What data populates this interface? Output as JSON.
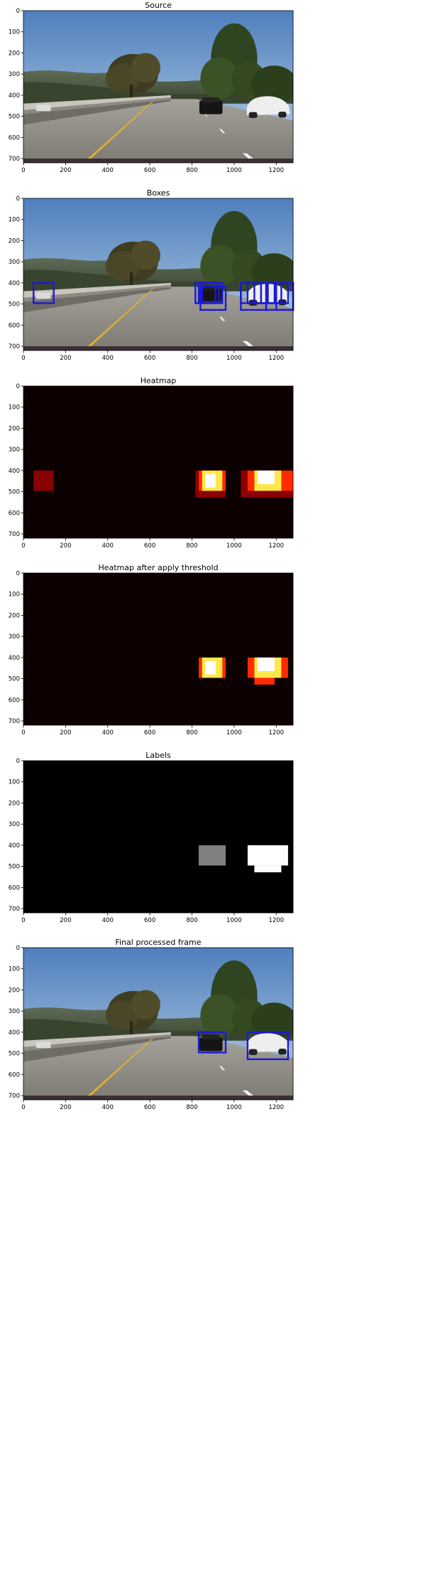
{
  "figure": {
    "panels": [
      {
        "id": "source",
        "title": "Source",
        "kind": "road"
      },
      {
        "id": "boxes",
        "title": "Boxes",
        "kind": "road"
      },
      {
        "id": "heatmap",
        "title": "Heatmap",
        "kind": "heat"
      },
      {
        "id": "threshold",
        "title": "Heatmap after apply threshold",
        "kind": "heat"
      },
      {
        "id": "labels",
        "title": "Labels",
        "kind": "labels"
      },
      {
        "id": "final",
        "title": "Final processed frame",
        "kind": "road"
      }
    ]
  },
  "colors": {
    "box": "#1a1ad6",
    "heat_bg": "#0d0000",
    "heat_low": "#8b0000",
    "heat_mid": "#ff2a00",
    "heat_high": "#ffe84a",
    "heat_peak": "#ffffff",
    "label_bg": "#000000",
    "label_1": "#808080",
    "label_2": "#ffffff"
  },
  "chart_data": [
    {
      "type": "heatmap",
      "title": "Source",
      "xlim": [
        0,
        1280
      ],
      "ylim": [
        720,
        0
      ],
      "xticks": [
        0,
        200,
        400,
        600,
        800,
        1000,
        1200
      ],
      "yticks": [
        0,
        100,
        200,
        300,
        400,
        500,
        600,
        700
      ],
      "content": "road scene image",
      "boxes": []
    },
    {
      "type": "heatmap",
      "title": "Boxes",
      "xlim": [
        0,
        1280
      ],
      "ylim": [
        720,
        0
      ],
      "xticks": [
        0,
        200,
        400,
        600,
        800,
        1000,
        1200
      ],
      "yticks": [
        0,
        100,
        200,
        300,
        400,
        500,
        600,
        700
      ],
      "content": "road scene image",
      "boxes": [
        [
          48,
          400,
          144,
          496
        ],
        [
          816,
          400,
          912,
          496
        ],
        [
          832,
          400,
          928,
          496
        ],
        [
          848,
          400,
          944,
          496
        ],
        [
          840,
          416,
          960,
          528
        ],
        [
          1032,
          400,
          1128,
          496
        ],
        [
          1064,
          400,
          1160,
          496
        ],
        [
          1096,
          400,
          1192,
          496
        ],
        [
          1128,
          400,
          1224,
          496
        ],
        [
          1160,
          400,
          1256,
          496
        ],
        [
          1032,
          400,
          1152,
          528
        ],
        [
          1152,
          400,
          1280,
          528
        ],
        [
          1200,
          400,
          1280,
          528
        ]
      ]
    },
    {
      "type": "heatmap",
      "title": "Heatmap",
      "xlim": [
        0,
        1280
      ],
      "ylim": [
        720,
        0
      ],
      "xticks": [
        0,
        200,
        400,
        600,
        800,
        1000,
        1200
      ],
      "yticks": [
        0,
        100,
        200,
        300,
        400,
        500,
        600,
        700
      ],
      "cells": [
        {
          "x": [
            48,
            144
          ],
          "y": [
            400,
            496
          ],
          "v": 1
        },
        {
          "x": [
            816,
            960
          ],
          "y": [
            400,
            528
          ],
          "v": 1
        },
        {
          "x": [
            832,
            960
          ],
          "y": [
            400,
            496
          ],
          "v": 2
        },
        {
          "x": [
            848,
            944
          ],
          "y": [
            400,
            496
          ],
          "v": 3
        },
        {
          "x": [
            864,
            912
          ],
          "y": [
            416,
            480
          ],
          "v": 4
        },
        {
          "x": [
            1032,
            1280
          ],
          "y": [
            400,
            528
          ],
          "v": 1
        },
        {
          "x": [
            1064,
            1280
          ],
          "y": [
            400,
            496
          ],
          "v": 2
        },
        {
          "x": [
            1096,
            1224
          ],
          "y": [
            400,
            496
          ],
          "v": 3
        },
        {
          "x": [
            1112,
            1192
          ],
          "y": [
            400,
            464
          ],
          "v": 4
        }
      ]
    },
    {
      "type": "heatmap",
      "title": "Heatmap after apply threshold",
      "xlim": [
        0,
        1280
      ],
      "ylim": [
        720,
        0
      ],
      "xticks": [
        0,
        200,
        400,
        600,
        800,
        1000,
        1200
      ],
      "yticks": [
        0,
        100,
        200,
        300,
        400,
        500,
        600,
        700
      ],
      "cells": [
        {
          "x": [
            832,
            960
          ],
          "y": [
            400,
            496
          ],
          "v": 2
        },
        {
          "x": [
            848,
            944
          ],
          "y": [
            400,
            496
          ],
          "v": 3
        },
        {
          "x": [
            864,
            912
          ],
          "y": [
            416,
            480
          ],
          "v": 4
        },
        {
          "x": [
            1064,
            1256
          ],
          "y": [
            400,
            496
          ],
          "v": 2
        },
        {
          "x": [
            1096,
            1224
          ],
          "y": [
            400,
            496
          ],
          "v": 3
        },
        {
          "x": [
            1112,
            1192
          ],
          "y": [
            400,
            464
          ],
          "v": 4
        },
        {
          "x": [
            1096,
            1192
          ],
          "y": [
            496,
            528
          ],
          "v": 2
        }
      ]
    },
    {
      "type": "heatmap",
      "title": "Labels",
      "xlim": [
        0,
        1280
      ],
      "ylim": [
        720,
        0
      ],
      "xticks": [
        0,
        200,
        400,
        600,
        800,
        1000,
        1200
      ],
      "yticks": [
        0,
        100,
        200,
        300,
        400,
        500,
        600,
        700
      ],
      "labels": [
        {
          "label": 1,
          "x": [
            832,
            960
          ],
          "y": [
            400,
            496
          ]
        },
        {
          "label": 2,
          "x": [
            1064,
            1256
          ],
          "y": [
            400,
            496
          ]
        },
        {
          "label": 2,
          "x": [
            1096,
            1224
          ],
          "y": [
            496,
            528
          ]
        }
      ]
    },
    {
      "type": "heatmap",
      "title": "Final processed frame",
      "xlim": [
        0,
        1280
      ],
      "ylim": [
        720,
        0
      ],
      "xticks": [
        0,
        200,
        400,
        600,
        800,
        1000,
        1200
      ],
      "yticks": [
        0,
        100,
        200,
        300,
        400,
        500,
        600,
        700
      ],
      "content": "road scene image",
      "boxes": [
        [
          832,
          400,
          960,
          496
        ],
        [
          1064,
          400,
          1256,
          528
        ]
      ]
    }
  ]
}
